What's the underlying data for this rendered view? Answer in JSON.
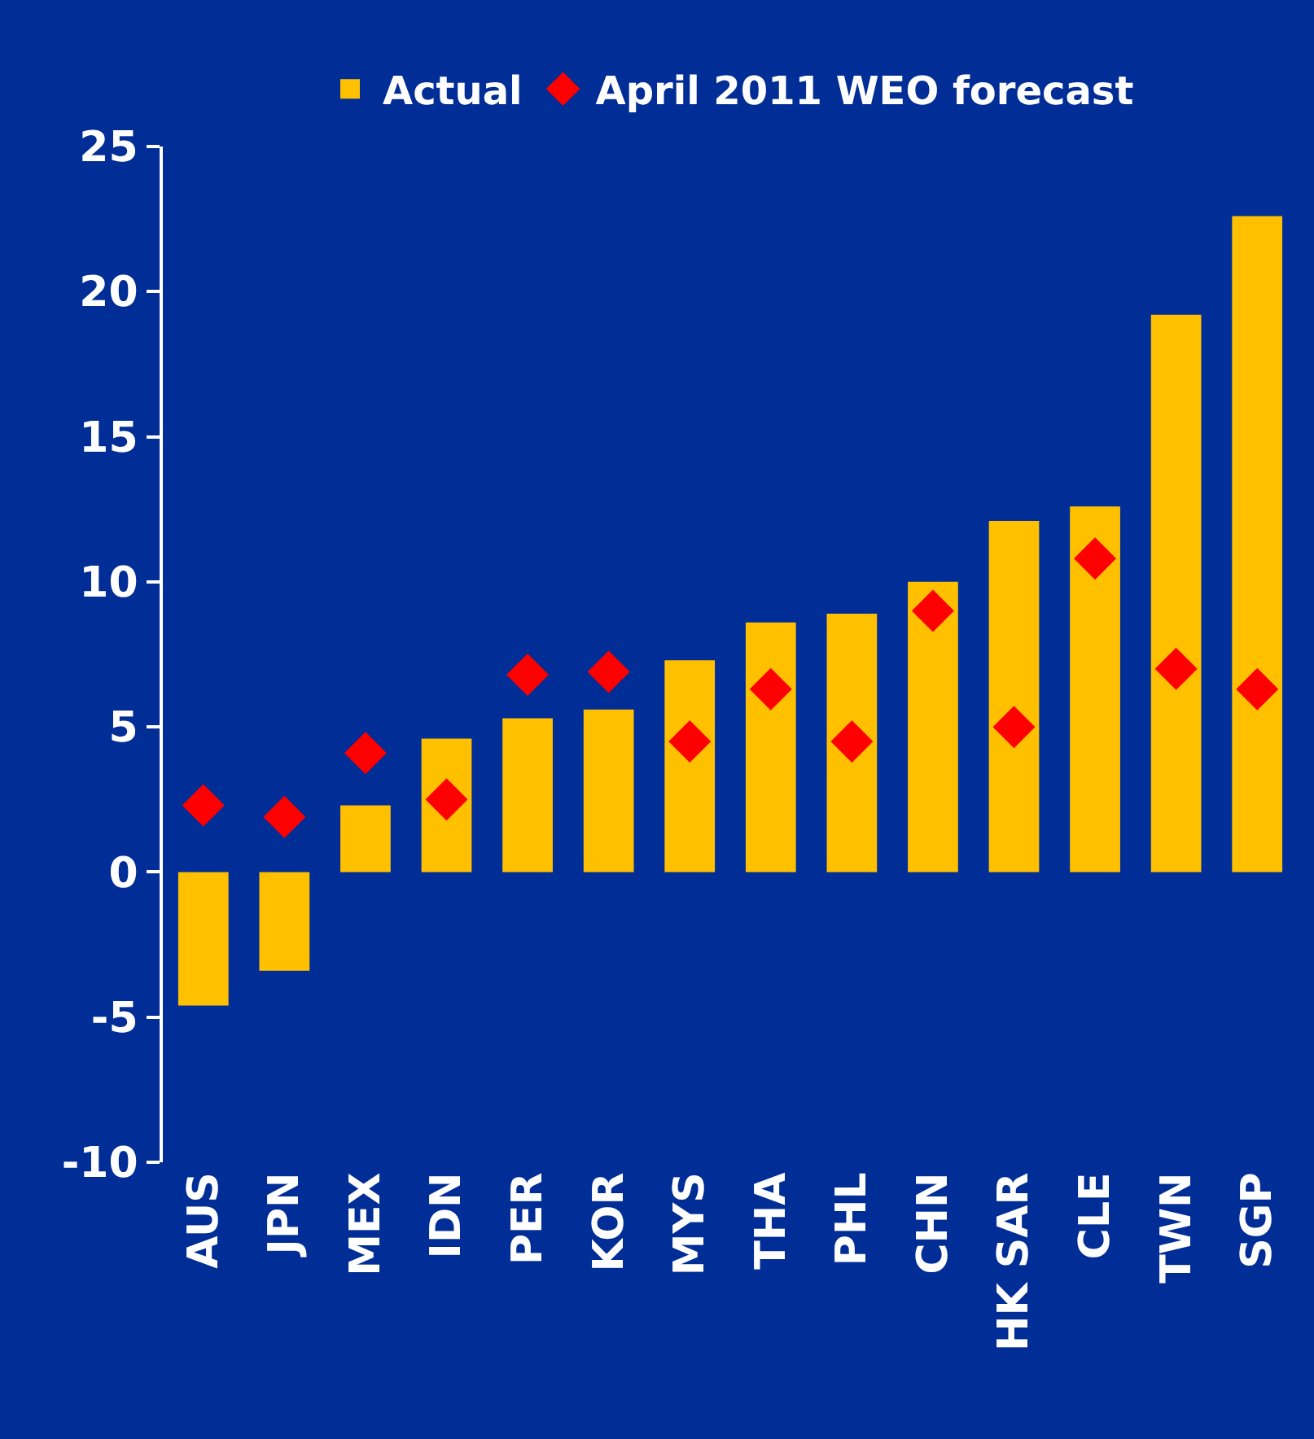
{
  "chart_data": {
    "type": "bar",
    "categories": [
      "AUS",
      "JPN",
      "MEX",
      "IDN",
      "PER",
      "KOR",
      "MYS",
      "THA",
      "PHL",
      "CHN",
      "HK SAR",
      "CLE",
      "TWN",
      "SGP"
    ],
    "series": [
      {
        "name": "Actual",
        "color": "#ffc000",
        "values": [
          -4.6,
          -3.4,
          2.3,
          4.6,
          5.3,
          5.6,
          7.3,
          8.6,
          8.9,
          10.0,
          12.1,
          12.6,
          19.2,
          22.6
        ]
      },
      {
        "name": "April 2011 WEO forecast",
        "type": "scatter",
        "color": "#ff0000",
        "marker": "diamond",
        "values": [
          2.3,
          1.9,
          4.1,
          2.5,
          6.8,
          6.9,
          4.5,
          6.3,
          4.5,
          9.0,
          5.0,
          10.8,
          7.0,
          6.3
        ]
      }
    ],
    "ylim": [
      -10,
      25
    ],
    "yticks": [
      -10,
      -5,
      0,
      5,
      10,
      15,
      20,
      25
    ],
    "grid": false,
    "legend": "top"
  }
}
